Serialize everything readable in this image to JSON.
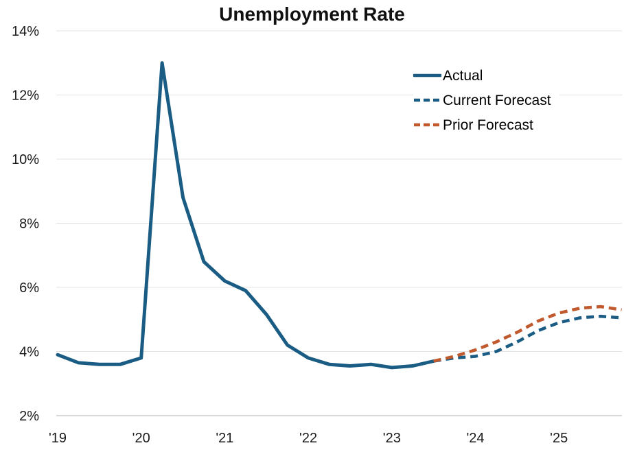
{
  "chart_data": {
    "type": "line",
    "title": "Unemployment Rate",
    "grid": "horizontal",
    "legend_position": "top-right",
    "colors": {
      "actual": "#1a5c84",
      "current_forecast": "#1a5c84",
      "prior_forecast": "#c05a2e",
      "gridline": "#e3e3e3",
      "baseline": "#cccccc",
      "text": "#1a1a1a",
      "title": "#111111"
    },
    "y_axis": {
      "min": 2,
      "max": 14,
      "step": 2,
      "ticks": [
        {
          "value": 14,
          "label": "14%"
        },
        {
          "value": 12,
          "label": "12%"
        },
        {
          "value": 10,
          "label": "10%"
        },
        {
          "value": 8,
          "label": "8%"
        },
        {
          "value": 6,
          "label": "6%"
        },
        {
          "value": 4,
          "label": "4%"
        },
        {
          "value": 2,
          "label": "2%"
        }
      ]
    },
    "x_axis": {
      "ticks": [
        {
          "value": 2019,
          "label": "'19"
        },
        {
          "value": 2020,
          "label": "'20"
        },
        {
          "value": 2021,
          "label": "'21"
        },
        {
          "value": 2022,
          "label": "'22"
        },
        {
          "value": 2023,
          "label": "'23"
        },
        {
          "value": 2024,
          "label": "'24"
        },
        {
          "value": 2025,
          "label": "'25"
        }
      ]
    },
    "series": [
      {
        "name": "Actual",
        "style": "solid",
        "color": "#1a5c84",
        "x": [
          2019.0,
          2019.25,
          2019.5,
          2019.75,
          2020.0,
          2020.25,
          2020.5,
          2020.75,
          2021.0,
          2021.25,
          2021.5,
          2021.75,
          2022.0,
          2022.25,
          2022.5,
          2022.75,
          2023.0,
          2023.25,
          2023.5
        ],
        "values": [
          3.9,
          3.65,
          3.6,
          3.6,
          3.8,
          13.0,
          8.8,
          6.8,
          6.2,
          5.9,
          5.15,
          4.2,
          3.8,
          3.6,
          3.55,
          3.6,
          3.5,
          3.55,
          3.7
        ]
      },
      {
        "name": "Current Forecast",
        "style": "dashed",
        "color": "#1a5c84",
        "x": [
          2023.5,
          2023.75,
          2024.0,
          2024.25,
          2024.5,
          2024.75,
          2025.0,
          2025.25,
          2025.5,
          2025.75
        ],
        "values": [
          3.7,
          3.8,
          3.85,
          4.0,
          4.3,
          4.65,
          4.9,
          5.05,
          5.1,
          5.05
        ]
      },
      {
        "name": "Prior Forecast",
        "style": "dashed",
        "color": "#c05a2e",
        "x": [
          2023.5,
          2023.75,
          2024.0,
          2024.25,
          2024.5,
          2024.75,
          2025.0,
          2025.25,
          2025.5,
          2025.75
        ],
        "values": [
          3.7,
          3.85,
          4.05,
          4.3,
          4.6,
          4.95,
          5.2,
          5.35,
          5.4,
          5.3
        ]
      }
    ]
  }
}
